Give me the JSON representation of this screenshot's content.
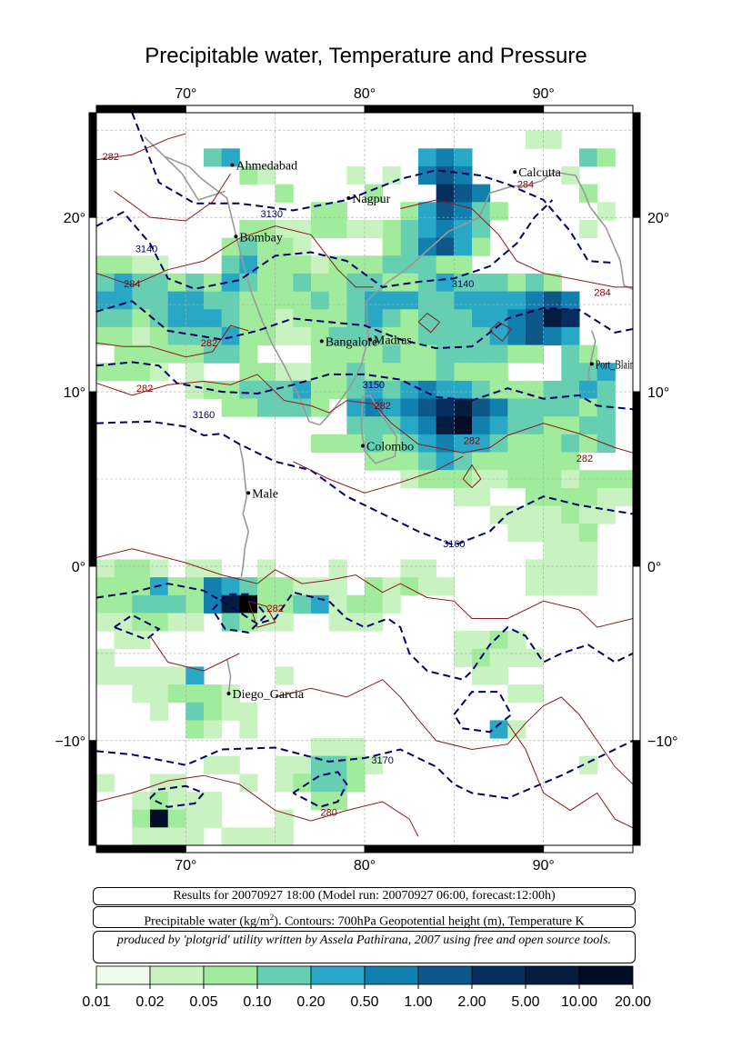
{
  "title": "Precipitable water, Temperature and Pressure",
  "map": {
    "lon_range": [
      65,
      95
    ],
    "lat_range": [
      -16,
      26
    ],
    "lon_ticks": [
      "70°",
      "80°",
      "90°"
    ],
    "lat_ticks": [
      "20°",
      "10°",
      "0°",
      "−10°"
    ],
    "cities": [
      {
        "name": "Ahmedabad",
        "lon": 72.6,
        "lat": 23.0
      },
      {
        "name": "Calcutta",
        "lon": 88.4,
        "lat": 22.6
      },
      {
        "name": "Nagpur",
        "lon": 79.1,
        "lat": 21.1
      },
      {
        "name": "Bombay",
        "lon": 72.8,
        "lat": 18.9
      },
      {
        "name": "Bangalore",
        "lon": 77.6,
        "lat": 12.9
      },
      {
        "name": "Madras",
        "lon": 80.3,
        "lat": 13.0
      },
      {
        "name": "Port_Blair",
        "lon": 92.7,
        "lat": 11.6
      },
      {
        "name": "Colombo",
        "lon": 79.9,
        "lat": 6.9
      },
      {
        "name": "Male",
        "lon": 73.5,
        "lat": 4.2
      },
      {
        "name": "Diego_Garcia",
        "lon": 72.4,
        "lat": -7.3
      }
    ],
    "contour_labels": [
      {
        "text": "282",
        "lon": 65.8,
        "lat": 23.3,
        "color": "#8b0000"
      },
      {
        "text": "3130",
        "lon": 74.8,
        "lat": 20.0,
        "color": "#000066"
      },
      {
        "text": "3140",
        "lon": 67.8,
        "lat": 18.0,
        "color": "#000066"
      },
      {
        "text": "284",
        "lon": 67.0,
        "lat": 16.0,
        "color": "#8b0000"
      },
      {
        "text": "284",
        "lon": 89.0,
        "lat": 21.7,
        "color": "#8b0000"
      },
      {
        "text": "3140",
        "lon": 85.5,
        "lat": 16.0,
        "color": "#000066"
      },
      {
        "text": "284",
        "lon": 93.3,
        "lat": 15.5,
        "color": "#8b0000"
      },
      {
        "text": "282",
        "lon": 71.3,
        "lat": 12.6,
        "color": "#8b0000"
      },
      {
        "text": "282",
        "lon": 67.7,
        "lat": 10.0,
        "color": "#8b0000"
      },
      {
        "text": "3150",
        "lon": 80.5,
        "lat": 10.2,
        "color": "#000066"
      },
      {
        "text": "282",
        "lon": 81.0,
        "lat": 9.0,
        "color": "#8b0000"
      },
      {
        "text": "3160",
        "lon": 71.0,
        "lat": 8.5,
        "color": "#000066"
      },
      {
        "text": "282",
        "lon": 86.0,
        "lat": 7.0,
        "color": "#8b0000"
      },
      {
        "text": "282",
        "lon": 92.3,
        "lat": 6.0,
        "color": "#8b0000"
      },
      {
        "text": "3160",
        "lon": 85.0,
        "lat": 1.1,
        "color": "#000066"
      },
      {
        "text": "282",
        "lon": 75.0,
        "lat": -2.6,
        "color": "#8b0000"
      },
      {
        "text": "3170",
        "lon": 81.0,
        "lat": -11.3,
        "color": "#000066"
      },
      {
        "text": "280",
        "lon": 78.0,
        "lat": -14.3,
        "color": "#8b0000"
      }
    ]
  },
  "info": {
    "line1": "Results for 20070927 18:00 (Model run: 20070927 06:00, forecast:12:00h)",
    "line2_a": "Precipitable water (kg/m",
    "line2_sup": "2",
    "line2_b": ").  Contours: 700hPa Geopotential height (m), Temperature K",
    "line3": "produced by 'plotgrid' utility written by Assela Pathirana, 2007 using free and open source tools."
  },
  "legend": {
    "colors": [
      "#eefbea",
      "#c8f3c0",
      "#a0ec9c",
      "#66cfb2",
      "#28a8c6",
      "#1280ae",
      "#0d5888",
      "#062e5e",
      "#041c3e",
      "#020c26",
      "#000000"
    ],
    "labels": [
      "0.01",
      "0.02",
      "0.05",
      "0.10",
      "0.20",
      "0.50",
      "1.00",
      "2.00",
      "5.00",
      "10.00",
      "20.00"
    ]
  }
}
